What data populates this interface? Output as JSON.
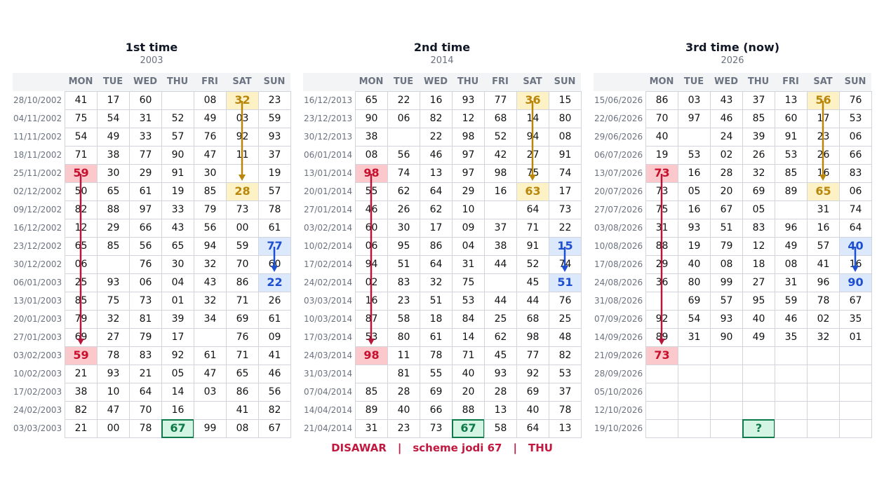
{
  "days": [
    "MON",
    "TUE",
    "WED",
    "THU",
    "FRI",
    "SAT",
    "SUN"
  ],
  "panels": [
    {
      "title": "1st time",
      "subtitle": "2003",
      "rows": [
        {
          "date": "28/10/2002",
          "cells": [
            "41",
            "17",
            "60",
            null,
            "08",
            "32",
            "23"
          ]
        },
        {
          "date": "04/11/2002",
          "cells": [
            "75",
            "54",
            "31",
            "52",
            "49",
            "03",
            "59"
          ]
        },
        {
          "date": "11/11/2002",
          "cells": [
            "54",
            "49",
            "33",
            "57",
            "76",
            "92",
            "93"
          ]
        },
        {
          "date": "18/11/2002",
          "cells": [
            "71",
            "38",
            "77",
            "90",
            "47",
            "11",
            "37"
          ]
        },
        {
          "date": "25/11/2002",
          "cells": [
            "59",
            "30",
            "29",
            "91",
            "30",
            null,
            "19"
          ]
        },
        {
          "date": "02/12/2002",
          "cells": [
            "50",
            "65",
            "61",
            "19",
            "85",
            "28",
            "57"
          ]
        },
        {
          "date": "09/12/2002",
          "cells": [
            "82",
            "88",
            "97",
            "33",
            "79",
            "73",
            "78"
          ]
        },
        {
          "date": "16/12/2002",
          "cells": [
            "12",
            "29",
            "66",
            "43",
            "56",
            "00",
            "61"
          ]
        },
        {
          "date": "23/12/2002",
          "cells": [
            "65",
            "85",
            "56",
            "65",
            "94",
            "59",
            "77"
          ]
        },
        {
          "date": "30/12/2002",
          "cells": [
            "06",
            null,
            "76",
            "30",
            "32",
            "70",
            "60"
          ]
        },
        {
          "date": "06/01/2003",
          "cells": [
            "25",
            "93",
            "06",
            "04",
            "43",
            "86",
            "22"
          ]
        },
        {
          "date": "13/01/2003",
          "cells": [
            "85",
            "75",
            "73",
            "01",
            "32",
            "71",
            "26"
          ]
        },
        {
          "date": "20/01/2003",
          "cells": [
            "79",
            "32",
            "81",
            "39",
            "34",
            "69",
            "61"
          ]
        },
        {
          "date": "27/01/2003",
          "cells": [
            "69",
            "27",
            "79",
            "17",
            null,
            "76",
            "09"
          ]
        },
        {
          "date": "03/02/2003",
          "cells": [
            "59",
            "78",
            "83",
            "92",
            "61",
            "71",
            "41"
          ]
        },
        {
          "date": "10/02/2003",
          "cells": [
            "21",
            "93",
            "21",
            "05",
            "47",
            "65",
            "46"
          ]
        },
        {
          "date": "17/02/2003",
          "cells": [
            "38",
            "10",
            "64",
            "14",
            "03",
            "86",
            "56"
          ]
        },
        {
          "date": "24/02/2003",
          "cells": [
            "82",
            "47",
            "70",
            "16",
            null,
            "41",
            "82"
          ]
        },
        {
          "date": "03/03/2003",
          "cells": [
            "21",
            "00",
            "78",
            "67",
            "99",
            "08",
            "67"
          ]
        }
      ]
    },
    {
      "title": "2nd time",
      "subtitle": "2014",
      "rows": [
        {
          "date": "16/12/2013",
          "cells": [
            "65",
            "22",
            "16",
            "93",
            "77",
            "36",
            "15"
          ]
        },
        {
          "date": "23/12/2013",
          "cells": [
            "90",
            "06",
            "82",
            "12",
            "68",
            "14",
            "80"
          ]
        },
        {
          "date": "30/12/2013",
          "cells": [
            "38",
            null,
            "22",
            "98",
            "52",
            "94",
            "08"
          ]
        },
        {
          "date": "06/01/2014",
          "cells": [
            "08",
            "56",
            "46",
            "97",
            "42",
            "27",
            "91"
          ]
        },
        {
          "date": "13/01/2014",
          "cells": [
            "98",
            "74",
            "13",
            "97",
            "98",
            "75",
            "74"
          ]
        },
        {
          "date": "20/01/2014",
          "cells": [
            "55",
            "62",
            "64",
            "29",
            "16",
            "63",
            "17"
          ]
        },
        {
          "date": "27/01/2014",
          "cells": [
            "46",
            "26",
            "62",
            "10",
            null,
            "64",
            "73"
          ]
        },
        {
          "date": "03/02/2014",
          "cells": [
            "60",
            "30",
            "17",
            "09",
            "37",
            "71",
            "22"
          ]
        },
        {
          "date": "10/02/2014",
          "cells": [
            "06",
            "95",
            "86",
            "04",
            "38",
            "91",
            "15"
          ]
        },
        {
          "date": "17/02/2014",
          "cells": [
            "94",
            "51",
            "64",
            "31",
            "44",
            "52",
            "74"
          ]
        },
        {
          "date": "24/02/2014",
          "cells": [
            "02",
            "83",
            "32",
            "75",
            null,
            "45",
            "51"
          ]
        },
        {
          "date": "03/03/2014",
          "cells": [
            "16",
            "23",
            "51",
            "53",
            "44",
            "44",
            "76"
          ]
        },
        {
          "date": "10/03/2014",
          "cells": [
            "87",
            "58",
            "18",
            "84",
            "25",
            "68",
            "25"
          ]
        },
        {
          "date": "17/03/2014",
          "cells": [
            "53",
            "80",
            "61",
            "14",
            "62",
            "98",
            "48"
          ]
        },
        {
          "date": "24/03/2014",
          "cells": [
            "98",
            "11",
            "78",
            "71",
            "45",
            "77",
            "82"
          ]
        },
        {
          "date": "31/03/2014",
          "cells": [
            null,
            "81",
            "55",
            "40",
            "93",
            "92",
            "53"
          ]
        },
        {
          "date": "07/04/2014",
          "cells": [
            "85",
            "28",
            "69",
            "20",
            "28",
            "69",
            "37"
          ]
        },
        {
          "date": "14/04/2014",
          "cells": [
            "89",
            "40",
            "66",
            "88",
            "13",
            "40",
            "78"
          ]
        },
        {
          "date": "21/04/2014",
          "cells": [
            "31",
            "23",
            "73",
            "67",
            "58",
            "64",
            "13"
          ]
        }
      ]
    },
    {
      "title": "3rd time  (now)",
      "subtitle": "2026",
      "rows": [
        {
          "date": "15/06/2026",
          "cells": [
            "86",
            "03",
            "43",
            "37",
            "13",
            "56",
            "76"
          ]
        },
        {
          "date": "22/06/2026",
          "cells": [
            "70",
            "97",
            "46",
            "85",
            "60",
            "17",
            "53"
          ]
        },
        {
          "date": "29/06/2026",
          "cells": [
            "40",
            null,
            "24",
            "39",
            "91",
            "23",
            "06"
          ]
        },
        {
          "date": "06/07/2026",
          "cells": [
            "19",
            "53",
            "02",
            "26",
            "53",
            "26",
            "66"
          ]
        },
        {
          "date": "13/07/2026",
          "cells": [
            "73",
            "16",
            "28",
            "32",
            "85",
            "16",
            "83"
          ]
        },
        {
          "date": "20/07/2026",
          "cells": [
            "73",
            "05",
            "20",
            "69",
            "89",
            "65",
            "06"
          ]
        },
        {
          "date": "27/07/2026",
          "cells": [
            "75",
            "16",
            "67",
            "05",
            null,
            "31",
            "74"
          ]
        },
        {
          "date": "03/08/2026",
          "cells": [
            "31",
            "93",
            "51",
            "83",
            "96",
            "16",
            "64"
          ]
        },
        {
          "date": "10/08/2026",
          "cells": [
            "88",
            "19",
            "79",
            "12",
            "49",
            "57",
            "40"
          ]
        },
        {
          "date": "17/08/2026",
          "cells": [
            "29",
            "40",
            "08",
            "18",
            "08",
            "41",
            "16"
          ]
        },
        {
          "date": "24/08/2026",
          "cells": [
            "36",
            "80",
            "99",
            "27",
            "31",
            "96",
            "90"
          ]
        },
        {
          "date": "31/08/2026",
          "cells": [
            null,
            "69",
            "57",
            "95",
            "59",
            "78",
            "67"
          ]
        },
        {
          "date": "07/09/2026",
          "cells": [
            "92",
            "54",
            "93",
            "40",
            "46",
            "02",
            "35"
          ]
        },
        {
          "date": "14/09/2026",
          "cells": [
            "89",
            "31",
            "90",
            "49",
            "35",
            "32",
            "01"
          ]
        },
        {
          "date": "21/09/2026",
          "cells": [
            "73",
            null,
            null,
            null,
            null,
            null,
            null
          ]
        },
        {
          "date": "28/09/2026",
          "cells": [
            null,
            null,
            null,
            null,
            null,
            null,
            null
          ]
        },
        {
          "date": "05/10/2026",
          "cells": [
            null,
            null,
            null,
            null,
            null,
            null,
            null
          ]
        },
        {
          "date": "12/10/2026",
          "cells": [
            null,
            null,
            null,
            null,
            null,
            null,
            null
          ]
        },
        {
          "date": "19/10/2026",
          "cells": [
            null,
            null,
            null,
            "?",
            null,
            null,
            null
          ]
        }
      ]
    }
  ],
  "footer": [
    "DISAWAR",
    "|",
    "scheme jodi 67",
    "|",
    "THU"
  ]
}
